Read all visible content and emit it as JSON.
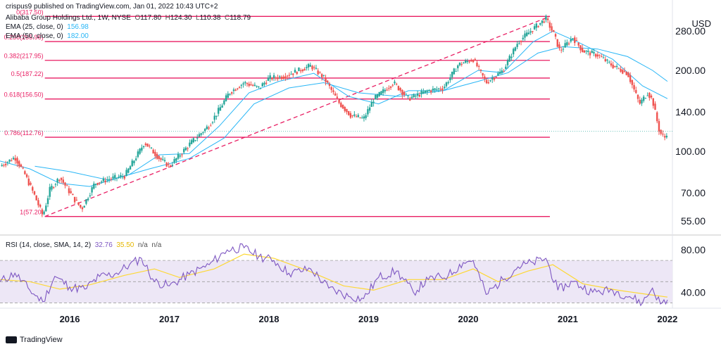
{
  "header": {
    "published": "crispus9 published on TradingView.com, Jan 01, 2022 10:43 UTC+2",
    "instrument": "Alibaba Group Holdings Ltd., 1W, NYSE",
    "ohlc": {
      "o_label": "O",
      "o": "117.80",
      "h_label": "H",
      "h": "124.30",
      "l_label": "L",
      "l": "110.38",
      "c_label": "C",
      "c": "118.79"
    },
    "ema1": {
      "label": "EMA (25, close, 0)",
      "value": "156.98"
    },
    "ema2": {
      "label": "EMA (50, close, 0)",
      "value": "182.00"
    }
  },
  "currency": "USD",
  "rsi_header": {
    "label": "RSI (14, close, SMA, 14, 2)",
    "rsi": "32.76",
    "sma": "35.50",
    "na1": "n/a",
    "na2": "n/a"
  },
  "footer": {
    "brand": "TradingView"
  },
  "colors": {
    "fib": "#e91e63",
    "ema_fast": "#29b6f6",
    "ema_slow": "#29b6f6",
    "up": "#26a69a",
    "down": "#ef5350",
    "rsi": "#7e57c2",
    "rsi_sma": "#fdd835",
    "rsi_band": "#ede7f6"
  },
  "chart_data": [
    {
      "type": "candlestick",
      "title": "Alibaba Group Holdings Ltd., 1W, NYSE",
      "y_scale": "log",
      "ylim": [
        50,
        320
      ],
      "y_ticks": [
        "55.00",
        "70.00",
        "100.00",
        "140.00",
        "200.00",
        "280.00"
      ],
      "x_ticks": [
        "2016",
        "2017",
        "2018",
        "2019",
        "2020",
        "2021",
        "2022"
      ],
      "xlim": [
        2015.3,
        2022.05
      ],
      "fib_levels": [
        {
          "label": "0(317.50)",
          "ratio": 0,
          "value": 317.5
        },
        {
          "label": "0.236(255.96)",
          "ratio": 0.236,
          "value": 255.96
        },
        {
          "label": "0.382(217.95)",
          "ratio": 0.382,
          "value": 217.95
        },
        {
          "label": "0.5(187.22)",
          "ratio": 0.5,
          "value": 187.22
        },
        {
          "label": "0.618(156.50)",
          "ratio": 0.618,
          "value": 156.5
        },
        {
          "label": "0.786(112.76)",
          "ratio": 0.786,
          "value": 112.76
        },
        {
          "label": "1(57.20)",
          "ratio": 1,
          "value": 57.2
        }
      ],
      "fib_span": {
        "from": 2015.75,
        "to": 2020.82
      },
      "trend_line": [
        {
          "x": 2015.75,
          "y": 57.2
        },
        {
          "x": 2020.82,
          "y": 317.5
        }
      ],
      "price_path": [
        {
          "x": 2015.3,
          "y": 88
        },
        {
          "x": 2015.45,
          "y": 95
        },
        {
          "x": 2015.55,
          "y": 82
        },
        {
          "x": 2015.65,
          "y": 68
        },
        {
          "x": 2015.73,
          "y": 57.5
        },
        {
          "x": 2015.8,
          "y": 72
        },
        {
          "x": 2015.9,
          "y": 80
        },
        {
          "x": 2016.05,
          "y": 66
        },
        {
          "x": 2016.12,
          "y": 61
        },
        {
          "x": 2016.25,
          "y": 76
        },
        {
          "x": 2016.4,
          "y": 79
        },
        {
          "x": 2016.55,
          "y": 81
        },
        {
          "x": 2016.7,
          "y": 100
        },
        {
          "x": 2016.75,
          "y": 108
        },
        {
          "x": 2016.9,
          "y": 94
        },
        {
          "x": 2017.0,
          "y": 88
        },
        {
          "x": 2017.2,
          "y": 106
        },
        {
          "x": 2017.4,
          "y": 125
        },
        {
          "x": 2017.5,
          "y": 143
        },
        {
          "x": 2017.6,
          "y": 165
        },
        {
          "x": 2017.75,
          "y": 180
        },
        {
          "x": 2017.9,
          "y": 172
        },
        {
          "x": 2018.0,
          "y": 187
        },
        {
          "x": 2018.15,
          "y": 190
        },
        {
          "x": 2018.3,
          "y": 200
        },
        {
          "x": 2018.42,
          "y": 208
        },
        {
          "x": 2018.55,
          "y": 188
        },
        {
          "x": 2018.7,
          "y": 152
        },
        {
          "x": 2018.82,
          "y": 136
        },
        {
          "x": 2018.95,
          "y": 132
        },
        {
          "x": 2019.05,
          "y": 156
        },
        {
          "x": 2019.25,
          "y": 180
        },
        {
          "x": 2019.4,
          "y": 157
        },
        {
          "x": 2019.6,
          "y": 168
        },
        {
          "x": 2019.75,
          "y": 172
        },
        {
          "x": 2019.9,
          "y": 210
        },
        {
          "x": 2020.05,
          "y": 220
        },
        {
          "x": 2020.18,
          "y": 180
        },
        {
          "x": 2020.35,
          "y": 200
        },
        {
          "x": 2020.5,
          "y": 255
        },
        {
          "x": 2020.65,
          "y": 285
        },
        {
          "x": 2020.78,
          "y": 312
        },
        {
          "x": 2020.86,
          "y": 272
        },
        {
          "x": 2020.92,
          "y": 236
        },
        {
          "x": 2021.05,
          "y": 265
        },
        {
          "x": 2021.15,
          "y": 236
        },
        {
          "x": 2021.3,
          "y": 228
        },
        {
          "x": 2021.45,
          "y": 208
        },
        {
          "x": 2021.6,
          "y": 195
        },
        {
          "x": 2021.72,
          "y": 150
        },
        {
          "x": 2021.8,
          "y": 165
        },
        {
          "x": 2021.85,
          "y": 155
        },
        {
          "x": 2021.92,
          "y": 118
        },
        {
          "x": 2021.97,
          "y": 112
        },
        {
          "x": 2022.0,
          "y": 118.79
        }
      ],
      "ema_fast_path": [
        {
          "x": 2015.3,
          "y": 92
        },
        {
          "x": 2015.6,
          "y": 86
        },
        {
          "x": 2015.9,
          "y": 76
        },
        {
          "x": 2016.2,
          "y": 74
        },
        {
          "x": 2016.6,
          "y": 82
        },
        {
          "x": 2016.9,
          "y": 97
        },
        {
          "x": 2017.2,
          "y": 98
        },
        {
          "x": 2017.5,
          "y": 124
        },
        {
          "x": 2017.8,
          "y": 165
        },
        {
          "x": 2018.1,
          "y": 182
        },
        {
          "x": 2018.45,
          "y": 195
        },
        {
          "x": 2018.8,
          "y": 160
        },
        {
          "x": 2019.1,
          "y": 150
        },
        {
          "x": 2019.4,
          "y": 168
        },
        {
          "x": 2019.75,
          "y": 168
        },
        {
          "x": 2020.1,
          "y": 200
        },
        {
          "x": 2020.35,
          "y": 196
        },
        {
          "x": 2020.65,
          "y": 255
        },
        {
          "x": 2020.85,
          "y": 280
        },
        {
          "x": 2021.1,
          "y": 255
        },
        {
          "x": 2021.45,
          "y": 220
        },
        {
          "x": 2021.75,
          "y": 175
        },
        {
          "x": 2022.0,
          "y": 156.98
        }
      ],
      "ema_slow_path": [
        {
          "x": 2015.65,
          "y": 88
        },
        {
          "x": 2016.0,
          "y": 84
        },
        {
          "x": 2016.4,
          "y": 78
        },
        {
          "x": 2016.8,
          "y": 86
        },
        {
          "x": 2017.2,
          "y": 94
        },
        {
          "x": 2017.55,
          "y": 112
        },
        {
          "x": 2017.85,
          "y": 150
        },
        {
          "x": 2018.2,
          "y": 172
        },
        {
          "x": 2018.55,
          "y": 180
        },
        {
          "x": 2018.9,
          "y": 165
        },
        {
          "x": 2019.3,
          "y": 160
        },
        {
          "x": 2019.75,
          "y": 168
        },
        {
          "x": 2020.1,
          "y": 182
        },
        {
          "x": 2020.4,
          "y": 196
        },
        {
          "x": 2020.7,
          "y": 232
        },
        {
          "x": 2020.95,
          "y": 245
        },
        {
          "x": 2021.3,
          "y": 240
        },
        {
          "x": 2021.6,
          "y": 225
        },
        {
          "x": 2021.85,
          "y": 200
        },
        {
          "x": 2022.0,
          "y": 182
        }
      ]
    },
    {
      "type": "line",
      "title": "RSI (14, close, SMA, 14, 2)",
      "ylim": [
        25,
        90
      ],
      "y_ticks": [
        "40.00",
        "80.00"
      ],
      "bands": [
        30,
        50,
        70
      ],
      "series": [
        {
          "name": "RSI",
          "points": [
            {
              "x": 2015.3,
              "y": 50
            },
            {
              "x": 2015.45,
              "y": 58
            },
            {
              "x": 2015.6,
              "y": 42
            },
            {
              "x": 2015.73,
              "y": 31
            },
            {
              "x": 2015.85,
              "y": 55
            },
            {
              "x": 2016.0,
              "y": 45
            },
            {
              "x": 2016.15,
              "y": 43
            },
            {
              "x": 2016.3,
              "y": 55
            },
            {
              "x": 2016.45,
              "y": 57
            },
            {
              "x": 2016.6,
              "y": 66
            },
            {
              "x": 2016.72,
              "y": 72
            },
            {
              "x": 2016.85,
              "y": 50
            },
            {
              "x": 2017.0,
              "y": 46
            },
            {
              "x": 2017.2,
              "y": 57
            },
            {
              "x": 2017.4,
              "y": 66
            },
            {
              "x": 2017.58,
              "y": 80
            },
            {
              "x": 2017.75,
              "y": 82
            },
            {
              "x": 2017.9,
              "y": 74
            },
            {
              "x": 2018.05,
              "y": 70
            },
            {
              "x": 2018.2,
              "y": 58
            },
            {
              "x": 2018.42,
              "y": 62
            },
            {
              "x": 2018.6,
              "y": 44
            },
            {
              "x": 2018.8,
              "y": 36
            },
            {
              "x": 2018.95,
              "y": 34
            },
            {
              "x": 2019.1,
              "y": 54
            },
            {
              "x": 2019.28,
              "y": 60
            },
            {
              "x": 2019.45,
              "y": 40
            },
            {
              "x": 2019.6,
              "y": 52
            },
            {
              "x": 2019.8,
              "y": 56
            },
            {
              "x": 2019.95,
              "y": 68
            },
            {
              "x": 2020.05,
              "y": 70
            },
            {
              "x": 2020.18,
              "y": 38
            },
            {
              "x": 2020.35,
              "y": 52
            },
            {
              "x": 2020.5,
              "y": 64
            },
            {
              "x": 2020.65,
              "y": 68
            },
            {
              "x": 2020.78,
              "y": 72
            },
            {
              "x": 2020.9,
              "y": 42
            },
            {
              "x": 2021.05,
              "y": 50
            },
            {
              "x": 2021.25,
              "y": 40
            },
            {
              "x": 2021.45,
              "y": 42
            },
            {
              "x": 2021.62,
              "y": 36
            },
            {
              "x": 2021.75,
              "y": 30
            },
            {
              "x": 2021.85,
              "y": 44
            },
            {
              "x": 2021.93,
              "y": 29
            },
            {
              "x": 2022.0,
              "y": 32.76
            }
          ]
        },
        {
          "name": "SMA",
          "points": [
            {
              "x": 2015.3,
              "y": 52
            },
            {
              "x": 2015.6,
              "y": 50
            },
            {
              "x": 2015.9,
              "y": 43
            },
            {
              "x": 2016.2,
              "y": 47
            },
            {
              "x": 2016.55,
              "y": 56
            },
            {
              "x": 2016.85,
              "y": 62
            },
            {
              "x": 2017.1,
              "y": 54
            },
            {
              "x": 2017.45,
              "y": 62
            },
            {
              "x": 2017.75,
              "y": 76
            },
            {
              "x": 2018.05,
              "y": 72
            },
            {
              "x": 2018.4,
              "y": 60
            },
            {
              "x": 2018.75,
              "y": 46
            },
            {
              "x": 2019.05,
              "y": 42
            },
            {
              "x": 2019.4,
              "y": 52
            },
            {
              "x": 2019.75,
              "y": 52
            },
            {
              "x": 2020.05,
              "y": 62
            },
            {
              "x": 2020.3,
              "y": 50
            },
            {
              "x": 2020.6,
              "y": 60
            },
            {
              "x": 2020.85,
              "y": 66
            },
            {
              "x": 2021.15,
              "y": 48
            },
            {
              "x": 2021.5,
              "y": 42
            },
            {
              "x": 2021.8,
              "y": 38
            },
            {
              "x": 2022.0,
              "y": 35.5
            }
          ]
        }
      ],
      "x_ticks": [
        "2016",
        "2017",
        "2018",
        "2019",
        "2020",
        "2021",
        "2022"
      ]
    }
  ]
}
